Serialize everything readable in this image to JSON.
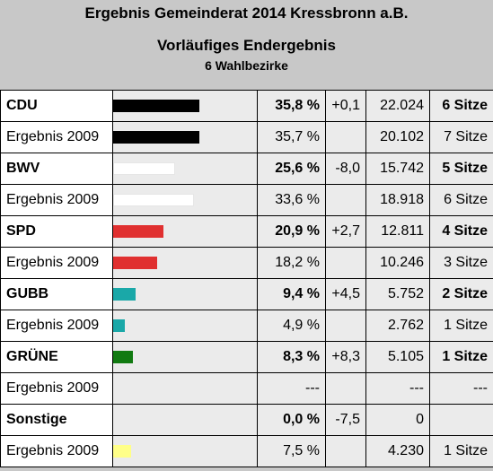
{
  "header": {
    "title": "Ergebnis Gemeinderat 2014 Kressbronn a.B.",
    "subtitle": "Vorläufiges Endergebnis",
    "districts": "6 Wahlbezirke"
  },
  "chart_data": {
    "type": "bar",
    "title": "Ergebnis Gemeinderat 2014 Kressbronn a.B.",
    "xlim": [
      0,
      50
    ],
    "rows": [
      {
        "label": "CDU",
        "kind": "main",
        "pct_value": 35.8,
        "pct": "35,8 %",
        "change": "+0,1",
        "votes": "22.024",
        "seats": "6 Sitze",
        "color": "#000000"
      },
      {
        "label": "Ergebnis 2009",
        "kind": "prev",
        "pct_value": 35.7,
        "pct": "35,7 %",
        "change": "",
        "votes": "20.102",
        "seats": "7 Sitze",
        "color": "#000000"
      },
      {
        "label": "BWV",
        "kind": "main",
        "pct_value": 25.6,
        "pct": "25,6 %",
        "change": "-8,0",
        "votes": "15.742",
        "seats": "5 Sitze",
        "color": "#ffffff"
      },
      {
        "label": "Ergebnis 2009",
        "kind": "prev",
        "pct_value": 33.6,
        "pct": "33,6 %",
        "change": "",
        "votes": "18.918",
        "seats": "6 Sitze",
        "color": "#ffffff"
      },
      {
        "label": "SPD",
        "kind": "main",
        "pct_value": 20.9,
        "pct": "20,9 %",
        "change": "+2,7",
        "votes": "12.811",
        "seats": "4 Sitze",
        "color": "#e03030"
      },
      {
        "label": "Ergebnis 2009",
        "kind": "prev",
        "pct_value": 18.2,
        "pct": "18,2 %",
        "change": "",
        "votes": "10.246",
        "seats": "3 Sitze",
        "color": "#e03030"
      },
      {
        "label": "GUBB",
        "kind": "main",
        "pct_value": 9.4,
        "pct": "9,4 %",
        "change": "+4,5",
        "votes": "5.752",
        "seats": "2 Sitze",
        "color": "#1aa8a8"
      },
      {
        "label": "Ergebnis 2009",
        "kind": "prev",
        "pct_value": 4.9,
        "pct": "4,9 %",
        "change": "",
        "votes": "2.762",
        "seats": "1 Sitze",
        "color": "#1aa8a8"
      },
      {
        "label": "GRÜNE",
        "kind": "main",
        "pct_value": 8.3,
        "pct": "8,3 %",
        "change": "+8,3",
        "votes": "5.105",
        "seats": "1 Sitze",
        "color": "#117a11"
      },
      {
        "label": "Ergebnis 2009",
        "kind": "prev",
        "pct_value": 0,
        "pct": "---",
        "change": "",
        "votes": "---",
        "seats": "---",
        "color": "#117a11"
      },
      {
        "label": "Sonstige",
        "kind": "main",
        "pct_value": 0,
        "pct": "0,0 %",
        "change": "-7,5",
        "votes": "0",
        "seats": "",
        "color": "#ffff88"
      },
      {
        "label": "Ergebnis 2009",
        "kind": "prev",
        "pct_value": 7.5,
        "pct": "7,5 %",
        "change": "",
        "votes": "4.230",
        "seats": "1 Sitze",
        "color": "#ffff88"
      }
    ]
  }
}
